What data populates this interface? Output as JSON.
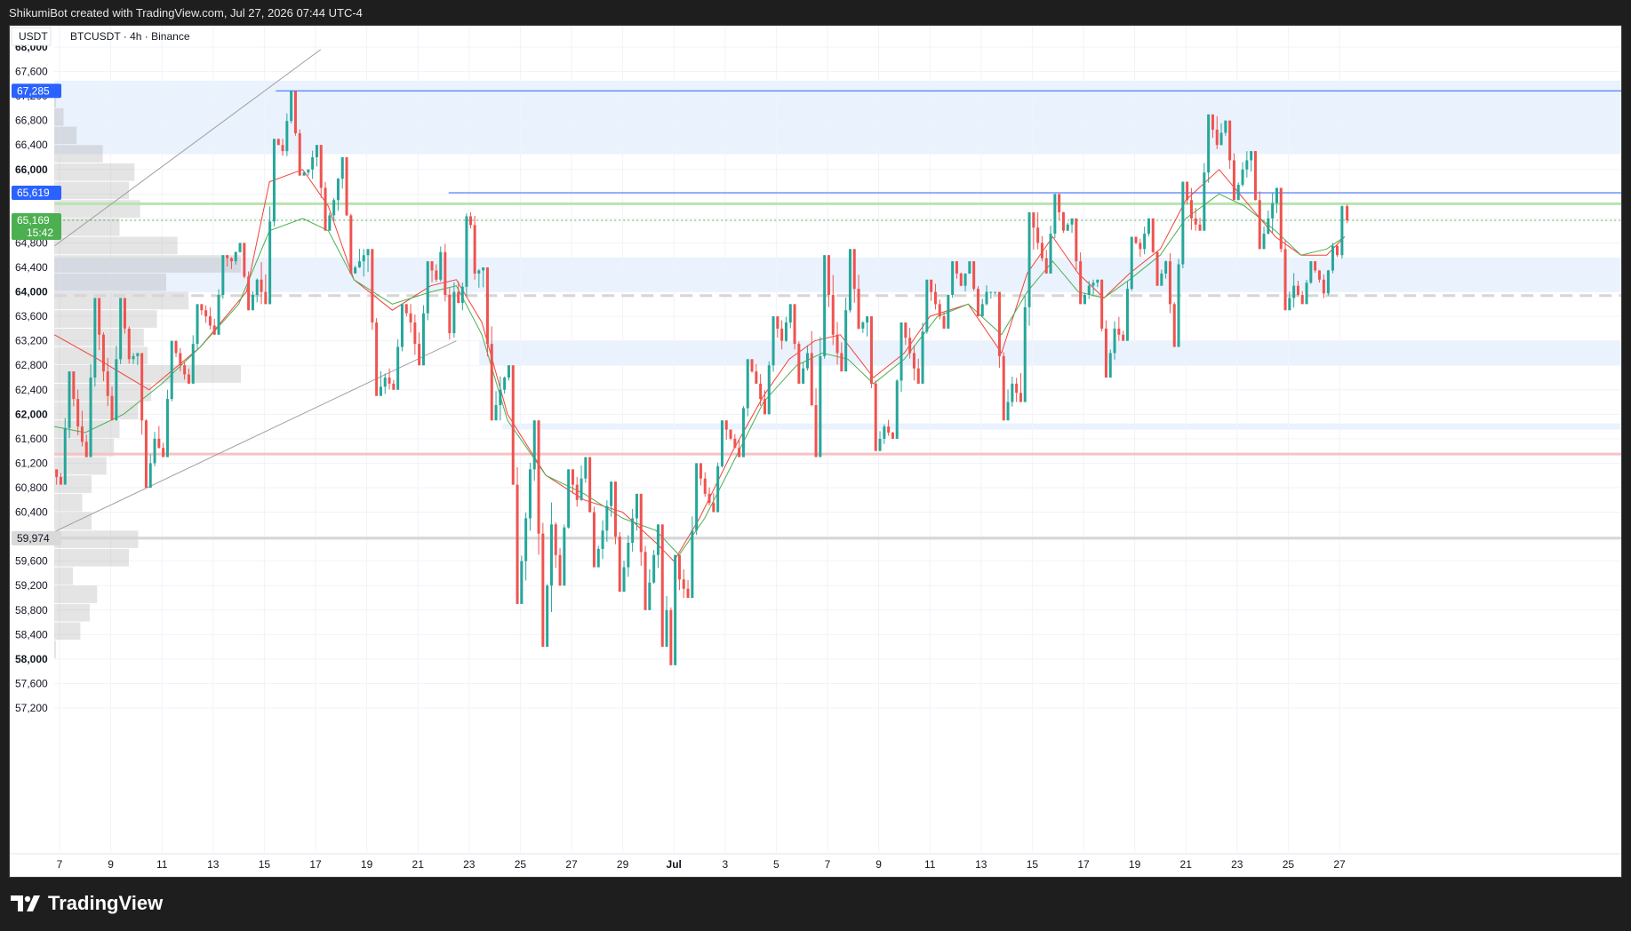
{
  "header": {
    "attribution": "ShikumiBot created with TradingView.com, Jul 27, 2026 07:44 UTC-4"
  },
  "footer": {
    "brand": "TradingView"
  },
  "colors": {
    "up": "#26a69a",
    "down": "#ef5350",
    "ema_fast": "#f44336",
    "ema_slow": "#4caf50",
    "zone": "#e3eefc",
    "level_blue": "#2962ff",
    "last_price_bg": "#4caf50"
  },
  "chart_data": {
    "type": "candlestick",
    "currency_label": "USDT",
    "symbol_line": "BTCUSDT · 4h · Binance",
    "ylim": [
      56800,
      68200
    ],
    "y_ticks": [
      {
        "v": 68000,
        "label": "68,000",
        "bold": true
      },
      {
        "v": 67600,
        "label": "67,600"
      },
      {
        "v": 67200,
        "label": "67,200"
      },
      {
        "v": 66800,
        "label": "66,800"
      },
      {
        "v": 66400,
        "label": "66,400"
      },
      {
        "v": 66000,
        "label": "66,000",
        "bold": true
      },
      {
        "v": 65600,
        "label": "65,600"
      },
      {
        "v": 65200,
        "label": "65,200"
      },
      {
        "v": 64800,
        "label": "64,800"
      },
      {
        "v": 64400,
        "label": "64,400"
      },
      {
        "v": 64000,
        "label": "64,000",
        "bold": true
      },
      {
        "v": 63600,
        "label": "63,600"
      },
      {
        "v": 63200,
        "label": "63,200"
      },
      {
        "v": 62800,
        "label": "62,800"
      },
      {
        "v": 62400,
        "label": "62,400"
      },
      {
        "v": 62000,
        "label": "62,000",
        "bold": true
      },
      {
        "v": 61600,
        "label": "61,600"
      },
      {
        "v": 61200,
        "label": "61,200"
      },
      {
        "v": 60800,
        "label": "60,800"
      },
      {
        "v": 60400,
        "label": "60,400"
      },
      {
        "v": 60000,
        "label": "60,000"
      },
      {
        "v": 59600,
        "label": "59,600"
      },
      {
        "v": 59200,
        "label": "59,200"
      },
      {
        "v": 58800,
        "label": "58,800"
      },
      {
        "v": 58400,
        "label": "58,400"
      },
      {
        "v": 58000,
        "label": "58,000",
        "bold": true
      },
      {
        "v": 57600,
        "label": "57,600"
      },
      {
        "v": 57200,
        "label": "57,200"
      }
    ],
    "x_ticks": [
      {
        "label": "7",
        "bold": false,
        "day": 7
      },
      {
        "label": "9",
        "bold": false,
        "day": 9
      },
      {
        "label": "11",
        "bold": false,
        "day": 11
      },
      {
        "label": "13",
        "bold": false,
        "day": 13
      },
      {
        "label": "15",
        "bold": false,
        "day": 15
      },
      {
        "label": "17",
        "bold": false,
        "day": 17
      },
      {
        "label": "19",
        "bold": false,
        "day": 19
      },
      {
        "label": "21",
        "bold": false,
        "day": 21
      },
      {
        "label": "23",
        "bold": false,
        "day": 23
      },
      {
        "label": "25",
        "bold": false,
        "day": 25
      },
      {
        "label": "27",
        "bold": false,
        "day": 27
      },
      {
        "label": "29",
        "bold": false,
        "day": 29
      },
      {
        "label": "Jul",
        "bold": true,
        "day": 31
      },
      {
        "label": "3",
        "bold": false,
        "day": 33
      },
      {
        "label": "5",
        "bold": false,
        "day": 35
      },
      {
        "label": "7",
        "bold": false,
        "day": 37
      },
      {
        "label": "9",
        "bold": false,
        "day": 39
      },
      {
        "label": "11",
        "bold": false,
        "day": 41
      },
      {
        "label": "13",
        "bold": false,
        "day": 43
      },
      {
        "label": "15",
        "bold": false,
        "day": 45
      },
      {
        "label": "17",
        "bold": false,
        "day": 47
      },
      {
        "label": "19",
        "bold": false,
        "day": 49
      },
      {
        "label": "21",
        "bold": false,
        "day": 51
      },
      {
        "label": "23",
        "bold": false,
        "day": 53
      },
      {
        "label": "25",
        "bold": false,
        "day": 55
      },
      {
        "label": "27",
        "bold": false,
        "day": 57
      }
    ],
    "price_labels": [
      {
        "v": 67285,
        "label": "67,285",
        "bg": "#2962ff",
        "color": "#ffffff"
      },
      {
        "v": 65619,
        "label": "65,619",
        "bg": "#2962ff",
        "color": "#ffffff"
      },
      {
        "v": 65169,
        "label": "65,169",
        "sub": "15:42",
        "bg": "#4caf50",
        "color": "#ffffff"
      },
      {
        "v": 59974,
        "label": "59,974",
        "bg": "#d9d9d9",
        "color": "#131722"
      }
    ],
    "levels": [
      {
        "v": 67285,
        "from_day": 15.45,
        "color": "#2962ff",
        "width": 1
      },
      {
        "v": 65619,
        "from_day": 22.2,
        "color": "#2962ff",
        "width": 1
      },
      {
        "v": 65440,
        "from_day": 6.8,
        "color": "#b7e4b0",
        "width": 3
      },
      {
        "v": 65169,
        "from_day": 6.8,
        "color": "#4caf50",
        "width": 1,
        "dotted": true
      },
      {
        "v": 63940,
        "from_day": 6.8,
        "color": "#d6d6d6",
        "width": 3,
        "dashed": true
      },
      {
        "v": 61350,
        "from_day": 6.8,
        "color": "#f7c2c4",
        "width": 3
      },
      {
        "v": 59974,
        "from_day": 6.8,
        "color": "#d6d6d6",
        "width": 3
      }
    ],
    "zones": [
      {
        "from_day": 6.8,
        "top": 67450,
        "bottom": 66250
      },
      {
        "from_day": 6.8,
        "top": 64560,
        "bottom": 64000
      },
      {
        "from_day": 23.4,
        "top": 63200,
        "bottom": 62800
      },
      {
        "from_day": 24.3,
        "top": 61850,
        "bottom": 61750
      }
    ],
    "trend_lines": [
      {
        "day1": 6.8,
        "v1": 64750,
        "day2": 17.2,
        "v2": 67960
      },
      {
        "day1": 6.8,
        "v1": 60080,
        "day2": 22.5,
        "v2": 63200
      }
    ],
    "volume_profile": [
      {
        "top": 67285,
        "bottom": 67000,
        "w": 0.01
      },
      {
        "top": 67000,
        "bottom": 66700,
        "w": 0.05
      },
      {
        "top": 66700,
        "bottom": 66400,
        "w": 0.12
      },
      {
        "top": 66400,
        "bottom": 66100,
        "w": 0.26
      },
      {
        "top": 66100,
        "bottom": 65800,
        "w": 0.43
      },
      {
        "top": 65800,
        "bottom": 65500,
        "w": 0.4
      },
      {
        "top": 65500,
        "bottom": 65200,
        "w": 0.46
      },
      {
        "top": 65200,
        "bottom": 64900,
        "w": 0.35
      },
      {
        "top": 64900,
        "bottom": 64600,
        "w": 0.66
      },
      {
        "top": 64600,
        "bottom": 64300,
        "w": 1.0
      },
      {
        "top": 64300,
        "bottom": 64000,
        "w": 0.6
      },
      {
        "top": 64000,
        "bottom": 63700,
        "w": 0.72
      },
      {
        "top": 63700,
        "bottom": 63400,
        "w": 0.55
      },
      {
        "top": 63400,
        "bottom": 63100,
        "w": 0.48
      },
      {
        "top": 63100,
        "bottom": 62800,
        "w": 0.5
      },
      {
        "top": 62800,
        "bottom": 62500,
        "w": 1.0
      },
      {
        "top": 62500,
        "bottom": 62200,
        "w": 0.52
      },
      {
        "top": 62200,
        "bottom": 61900,
        "w": 0.45
      },
      {
        "top": 61900,
        "bottom": 61600,
        "w": 0.35
      },
      {
        "top": 61600,
        "bottom": 61300,
        "w": 0.32
      },
      {
        "top": 61300,
        "bottom": 61000,
        "w": 0.28
      },
      {
        "top": 61000,
        "bottom": 60700,
        "w": 0.2
      },
      {
        "top": 60700,
        "bottom": 60400,
        "w": 0.15
      },
      {
        "top": 60400,
        "bottom": 60100,
        "w": 0.2
      },
      {
        "top": 60100,
        "bottom": 59800,
        "w": 0.45
      },
      {
        "top": 59800,
        "bottom": 59500,
        "w": 0.4
      },
      {
        "top": 59500,
        "bottom": 59200,
        "w": 0.1
      },
      {
        "top": 59200,
        "bottom": 58900,
        "w": 0.23
      },
      {
        "top": 58900,
        "bottom": 58600,
        "w": 0.19
      },
      {
        "top": 58600,
        "bottom": 58300,
        "w": 0.14
      },
      {
        "top": 58300,
        "bottom": 58000,
        "w": 0.01
      }
    ],
    "ohlc_daily": [
      [
        6.8,
        61100,
        62700,
        60850,
        61800
      ],
      [
        7.8,
        61800,
        63900,
        61300,
        62700
      ],
      [
        8.8,
        62700,
        63900,
        61900,
        62900
      ],
      [
        9.8,
        62900,
        63000,
        60800,
        61600
      ],
      [
        10.8,
        61600,
        63200,
        61300,
        62800
      ],
      [
        11.8,
        62800,
        63800,
        62500,
        63600
      ],
      [
        12.8,
        63600,
        64600,
        63300,
        64500
      ],
      [
        13.8,
        64500,
        64800,
        63700,
        64200
      ],
      [
        14.8,
        64200,
        66500,
        63800,
        66300
      ],
      [
        15.8,
        66300,
        67285,
        65900,
        66000
      ],
      [
        16.8,
        66000,
        66400,
        65000,
        65500
      ],
      [
        17.8,
        65500,
        66200,
        64300,
        64500
      ],
      [
        18.8,
        64500,
        64700,
        62300,
        62600
      ],
      [
        19.8,
        62600,
        63800,
        62400,
        63500
      ],
      [
        20.8,
        63500,
        64500,
        62800,
        64200
      ],
      [
        21.8,
        64200,
        64800,
        63100,
        64000
      ],
      [
        22.5,
        64000,
        65619,
        63700,
        64300
      ],
      [
        23.3,
        64300,
        64400,
        61900,
        62400
      ],
      [
        24.3,
        62400,
        62800,
        58900,
        60300
      ],
      [
        25.3,
        60300,
        61900,
        58200,
        60200
      ],
      [
        26.3,
        60200,
        61100,
        59200,
        60600
      ],
      [
        27.3,
        60600,
        61300,
        59500,
        60100
      ],
      [
        28.3,
        60100,
        60900,
        59100,
        59900
      ],
      [
        29.3,
        59900,
        60700,
        58800,
        59700
      ],
      [
        30.3,
        59700,
        60200,
        58200,
        58800
      ],
      [
        30.8,
        58800,
        59700,
        57900,
        59300
      ],
      [
        31.3,
        59300,
        61200,
        59000,
        60700
      ],
      [
        32.3,
        60700,
        61900,
        60400,
        61600
      ],
      [
        33.3,
        61600,
        62900,
        61300,
        62500
      ],
      [
        34.3,
        62500,
        63600,
        62000,
        63200
      ],
      [
        35.3,
        63200,
        63800,
        62500,
        63000
      ],
      [
        36.3,
        63000,
        64600,
        61300,
        63300
      ],
      [
        37.3,
        63300,
        64700,
        62700,
        63400
      ],
      [
        38.3,
        63400,
        63600,
        61400,
        61800
      ],
      [
        39.3,
        61800,
        63500,
        61600,
        63000
      ],
      [
        40.3,
        63000,
        64200,
        62500,
        63800
      ],
      [
        41.3,
        63800,
        64500,
        63400,
        64100
      ],
      [
        42.3,
        64100,
        64500,
        63600,
        64000
      ],
      [
        43.3,
        64000,
        64000,
        61900,
        62500
      ],
      [
        44.3,
        62500,
        65300,
        62200,
        64800
      ],
      [
        45.3,
        64800,
        65600,
        64300,
        65000
      ],
      [
        46.3,
        65000,
        65200,
        63800,
        64100
      ],
      [
        47.3,
        64100,
        64200,
        62600,
        63400
      ],
      [
        48.3,
        63400,
        64900,
        63200,
        64700
      ],
      [
        49.3,
        64700,
        65200,
        64100,
        64500
      ],
      [
        50.3,
        64500,
        65800,
        63100,
        65200
      ],
      [
        51.3,
        65200,
        66900,
        65000,
        66400
      ],
      [
        52.3,
        66400,
        66800,
        65500,
        66000
      ],
      [
        53.3,
        66000,
        66300,
        64700,
        65200
      ],
      [
        54.3,
        65200,
        65700,
        63700,
        64100
      ],
      [
        55.3,
        64100,
        64500,
        63800,
        64200
      ],
      [
        56.3,
        64200,
        64800,
        63900,
        64600
      ],
      [
        57.0,
        64600,
        65700,
        64400,
        65400
      ],
      [
        57.2,
        65400,
        65600,
        65000,
        65169
      ]
    ],
    "ema_fast": [
      [
        6.8,
        63300
      ],
      [
        8.5,
        62900
      ],
      [
        10.5,
        62400
      ],
      [
        12.5,
        63100
      ],
      [
        14.3,
        64000
      ],
      [
        15.2,
        65800
      ],
      [
        16.5,
        66000
      ],
      [
        17.5,
        65400
      ],
      [
        18.5,
        64200
      ],
      [
        20.0,
        63700
      ],
      [
        21.5,
        64100
      ],
      [
        22.5,
        64200
      ],
      [
        23.5,
        63500
      ],
      [
        24.5,
        62000
      ],
      [
        26.0,
        61000
      ],
      [
        27.5,
        60600
      ],
      [
        29.0,
        60400
      ],
      [
        30.3,
        59900
      ],
      [
        31.0,
        59600
      ],
      [
        32.0,
        60300
      ],
      [
        33.3,
        61400
      ],
      [
        34.5,
        62300
      ],
      [
        35.5,
        62900
      ],
      [
        36.5,
        63200
      ],
      [
        37.5,
        63300
      ],
      [
        38.8,
        62600
      ],
      [
        40.0,
        63000
      ],
      [
        41.0,
        63600
      ],
      [
        42.5,
        63800
      ],
      [
        43.8,
        63000
      ],
      [
        44.8,
        64300
      ],
      [
        45.8,
        64900
      ],
      [
        46.8,
        64300
      ],
      [
        47.8,
        63900
      ],
      [
        48.8,
        64300
      ],
      [
        50.0,
        64700
      ],
      [
        51.0,
        65500
      ],
      [
        52.3,
        66000
      ],
      [
        53.3,
        65500
      ],
      [
        54.5,
        64900
      ],
      [
        55.5,
        64600
      ],
      [
        56.5,
        64600
      ],
      [
        57.2,
        64900
      ]
    ],
    "ema_slow": [
      [
        6.8,
        61800
      ],
      [
        8.0,
        61700
      ],
      [
        9.5,
        62000
      ],
      [
        11.0,
        62500
      ],
      [
        12.5,
        63100
      ],
      [
        14.0,
        63800
      ],
      [
        15.2,
        65000
      ],
      [
        16.5,
        65200
      ],
      [
        17.5,
        65000
      ],
      [
        18.5,
        64200
      ],
      [
        20.0,
        63800
      ],
      [
        21.5,
        64000
      ],
      [
        22.5,
        64100
      ],
      [
        23.5,
        63300
      ],
      [
        24.5,
        61900
      ],
      [
        26.0,
        61000
      ],
      [
        27.5,
        60700
      ],
      [
        29.0,
        60300
      ],
      [
        30.3,
        60100
      ],
      [
        31.2,
        59700
      ],
      [
        32.2,
        60300
      ],
      [
        33.3,
        61200
      ],
      [
        34.5,
        62200
      ],
      [
        35.8,
        62800
      ],
      [
        36.8,
        63000
      ],
      [
        37.8,
        62900
      ],
      [
        38.8,
        62500
      ],
      [
        40.0,
        62900
      ],
      [
        41.3,
        63600
      ],
      [
        42.5,
        63800
      ],
      [
        43.8,
        63300
      ],
      [
        44.8,
        64000
      ],
      [
        45.8,
        64500
      ],
      [
        46.8,
        64000
      ],
      [
        47.8,
        63900
      ],
      [
        48.8,
        64200
      ],
      [
        50.0,
        64600
      ],
      [
        51.0,
        65200
      ],
      [
        52.3,
        65600
      ],
      [
        53.3,
        65400
      ],
      [
        54.5,
        65000
      ],
      [
        55.5,
        64600
      ],
      [
        56.5,
        64700
      ],
      [
        57.2,
        64900
      ]
    ]
  }
}
